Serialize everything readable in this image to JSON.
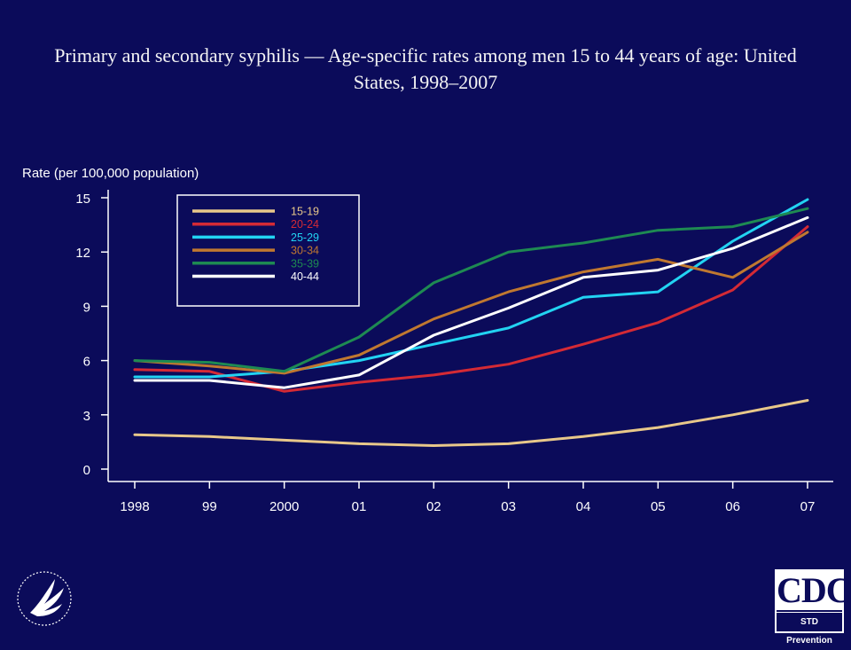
{
  "title": "Primary and secondary syphilis — Age-specific rates among men 15 to 44 years of age: United States, 1998–2007",
  "logos": {
    "cdc_main": "CDC",
    "cdc_sub": "STD Prevention"
  },
  "colors": {
    "background": "#0b0b5a",
    "axis": "#ffffff"
  },
  "chart_data": {
    "type": "line",
    "title": "Primary and secondary syphilis — Age-specific rates among men 15 to 44 years of age: United States, 1998–2007",
    "xlabel": "",
    "ylabel": "Rate (per 100,000 population)",
    "categories": [
      "1998",
      "99",
      "2000",
      "01",
      "02",
      "03",
      "04",
      "05",
      "06",
      "07"
    ],
    "ylim": [
      0,
      15
    ],
    "yticks": [
      0,
      3,
      6,
      9,
      12,
      15
    ],
    "grid": false,
    "legend_position": "top-left",
    "series": [
      {
        "name": "15-19",
        "color": "#e8c88a",
        "values": [
          1.9,
          1.8,
          1.6,
          1.4,
          1.3,
          1.4,
          1.8,
          2.3,
          3.0,
          3.8
        ]
      },
      {
        "name": "20-24",
        "color": "#d42a35",
        "values": [
          5.5,
          5.4,
          4.3,
          4.8,
          5.2,
          5.8,
          6.9,
          8.1,
          9.9,
          13.4
        ]
      },
      {
        "name": "25-29",
        "color": "#22d3f2",
        "values": [
          5.1,
          5.1,
          5.4,
          6.0,
          6.9,
          7.8,
          9.5,
          9.8,
          12.6,
          14.9
        ]
      },
      {
        "name": "30-34",
        "color": "#c07830",
        "values": [
          6.0,
          5.7,
          5.3,
          6.3,
          8.3,
          9.8,
          10.9,
          11.6,
          10.6,
          13.1
        ]
      },
      {
        "name": "35-39",
        "color": "#1e8a52",
        "values": [
          6.0,
          5.9,
          5.4,
          7.3,
          10.3,
          12.0,
          12.5,
          13.2,
          13.4,
          14.4
        ]
      },
      {
        "name": "40-44",
        "color": "#ffffff",
        "values": [
          4.9,
          4.9,
          4.5,
          5.2,
          7.4,
          8.9,
          10.6,
          11.0,
          12.2,
          13.9
        ]
      }
    ]
  }
}
